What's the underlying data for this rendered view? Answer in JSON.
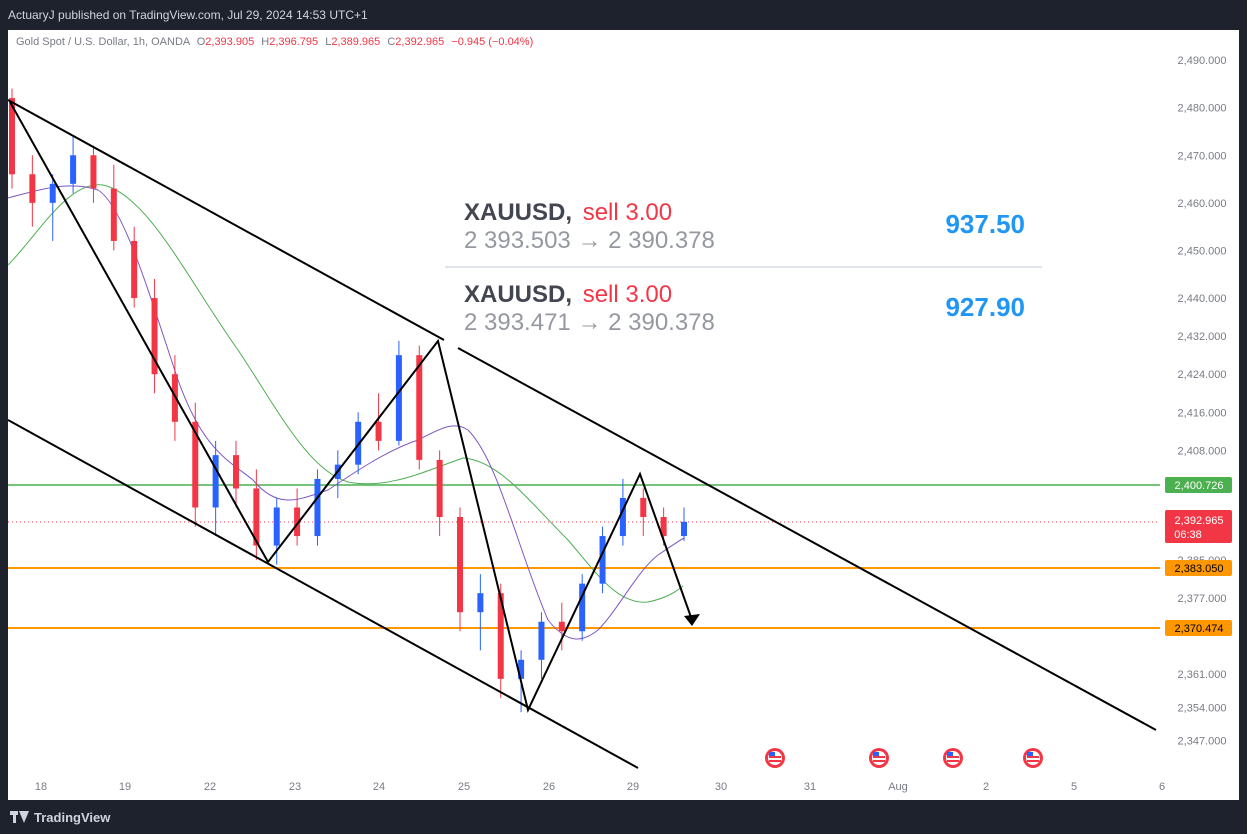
{
  "header": {
    "publisher_line": "ActuaryJ published on TradingView.com, Jul 29, 2024 14:53 UTC+1"
  },
  "footer": {
    "brand": "TradingView"
  },
  "legend": {
    "symbol": "Gold Spot / U.S. Dollar, 1h, OANDA",
    "open_label": "O",
    "open": "2,393.905",
    "high_label": "H",
    "high": "2,396.795",
    "low_label": "L",
    "low": "2,389.965",
    "close_label": "C",
    "close": "2,392.965",
    "change": "−0.945 (−0.04%)"
  },
  "trades": [
    {
      "symbol": "XAUUSD",
      "sep": ",",
      "side": "sell 3.00",
      "prices": "2 393.503 → 2 390.378",
      "profit": "937.50"
    },
    {
      "symbol": "XAUUSD",
      "sep": ",",
      "side": "sell 3.00",
      "prices": "2 393.471 → 2 390.378",
      "profit": "927.90"
    }
  ],
  "chart_data": {
    "type": "candlestick",
    "y_axis": {
      "range": [
        2344,
        2500
      ],
      "tick_labels": [
        "2,490.000",
        "2,480.000",
        "2,470.000",
        "2,460.000",
        "2,450.000",
        "2,440.000",
        "2,432.000",
        "2,424.000",
        "2,416.000",
        "2,408.000",
        "2,385.000",
        "2,377.000",
        "2,361.000",
        "2,354.000",
        "2,347.000"
      ],
      "tick_values": [
        2490,
        2480,
        2470,
        2460,
        2450,
        2440,
        2432,
        2424,
        2416,
        2408,
        2385,
        2377,
        2361,
        2354,
        2347
      ]
    },
    "x_axis": {
      "tick_labels": [
        "18",
        "19",
        "22",
        "23",
        "24",
        "25",
        "26",
        "29",
        "30",
        "31",
        "Aug",
        "2",
        "5",
        "6"
      ]
    },
    "horizontal_levels": [
      {
        "value": 2400.726,
        "label": "2,400.726",
        "color": "#4caf50"
      },
      {
        "value": 2383.05,
        "label": "2,383.050",
        "color": "#ff9800"
      },
      {
        "value": 2370.474,
        "label": "2,370.474",
        "color": "#ff9800"
      }
    ],
    "current_price": {
      "value": 2392.965,
      "label": "2,392.965",
      "countdown": "06:38",
      "color": "#f23645"
    },
    "colors": {
      "up": "#2962ff",
      "down": "#f23645",
      "ma_fast": "#7e57c2",
      "ma_slow": "#4caf50",
      "trendline": "#000000"
    },
    "zigzag_prices": [
      2484,
      2464,
      2384,
      2432,
      2353,
      2402,
      2371
    ],
    "channel": {
      "upper_line_prices": [
        2484,
        2432
      ],
      "lower_line_prices": [
        2417,
        2384,
        2353
      ]
    },
    "candles_summary": [
      {
        "o": 2482,
        "h": 2484,
        "l": 2463,
        "c": 2466
      },
      {
        "o": 2466,
        "h": 2470,
        "l": 2455,
        "c": 2460
      },
      {
        "o": 2460,
        "h": 2466,
        "l": 2452,
        "c": 2464
      },
      {
        "o": 2464,
        "h": 2474,
        "l": 2462,
        "c": 2470
      },
      {
        "o": 2470,
        "h": 2472,
        "l": 2460,
        "c": 2463
      },
      {
        "o": 2463,
        "h": 2468,
        "l": 2450,
        "c": 2452
      },
      {
        "o": 2452,
        "h": 2455,
        "l": 2438,
        "c": 2440
      },
      {
        "o": 2440,
        "h": 2444,
        "l": 2420,
        "c": 2424
      },
      {
        "o": 2424,
        "h": 2428,
        "l": 2410,
        "c": 2414
      },
      {
        "o": 2414,
        "h": 2418,
        "l": 2392,
        "c": 2396
      },
      {
        "o": 2396,
        "h": 2410,
        "l": 2390,
        "c": 2407
      },
      {
        "o": 2407,
        "h": 2410,
        "l": 2396,
        "c": 2400
      },
      {
        "o": 2400,
        "h": 2404,
        "l": 2385,
        "c": 2388
      },
      {
        "o": 2388,
        "h": 2398,
        "l": 2384,
        "c": 2396
      },
      {
        "o": 2396,
        "h": 2400,
        "l": 2388,
        "c": 2390
      },
      {
        "o": 2390,
        "h": 2404,
        "l": 2388,
        "c": 2402
      },
      {
        "o": 2402,
        "h": 2408,
        "l": 2398,
        "c": 2405
      },
      {
        "o": 2405,
        "h": 2416,
        "l": 2403,
        "c": 2414
      },
      {
        "o": 2414,
        "h": 2420,
        "l": 2408,
        "c": 2410
      },
      {
        "o": 2410,
        "h": 2431,
        "l": 2409,
        "c": 2428
      },
      {
        "o": 2428,
        "h": 2430,
        "l": 2404,
        "c": 2406
      },
      {
        "o": 2406,
        "h": 2408,
        "l": 2390,
        "c": 2394
      },
      {
        "o": 2394,
        "h": 2396,
        "l": 2370,
        "c": 2374
      },
      {
        "o": 2374,
        "h": 2382,
        "l": 2366,
        "c": 2378
      },
      {
        "o": 2378,
        "h": 2380,
        "l": 2356,
        "c": 2360
      },
      {
        "o": 2360,
        "h": 2366,
        "l": 2353,
        "c": 2364
      },
      {
        "o": 2364,
        "h": 2374,
        "l": 2360,
        "c": 2372
      },
      {
        "o": 2372,
        "h": 2376,
        "l": 2366,
        "c": 2370
      },
      {
        "o": 2370,
        "h": 2382,
        "l": 2368,
        "c": 2380
      },
      {
        "o": 2380,
        "h": 2392,
        "l": 2378,
        "c": 2390
      },
      {
        "o": 2390,
        "h": 2402,
        "l": 2388,
        "c": 2398
      },
      {
        "o": 2398,
        "h": 2400,
        "l": 2390,
        "c": 2394
      },
      {
        "o": 2394,
        "h": 2396,
        "l": 2388,
        "c": 2390
      },
      {
        "o": 2390,
        "h": 2396,
        "l": 2389,
        "c": 2393
      }
    ]
  }
}
